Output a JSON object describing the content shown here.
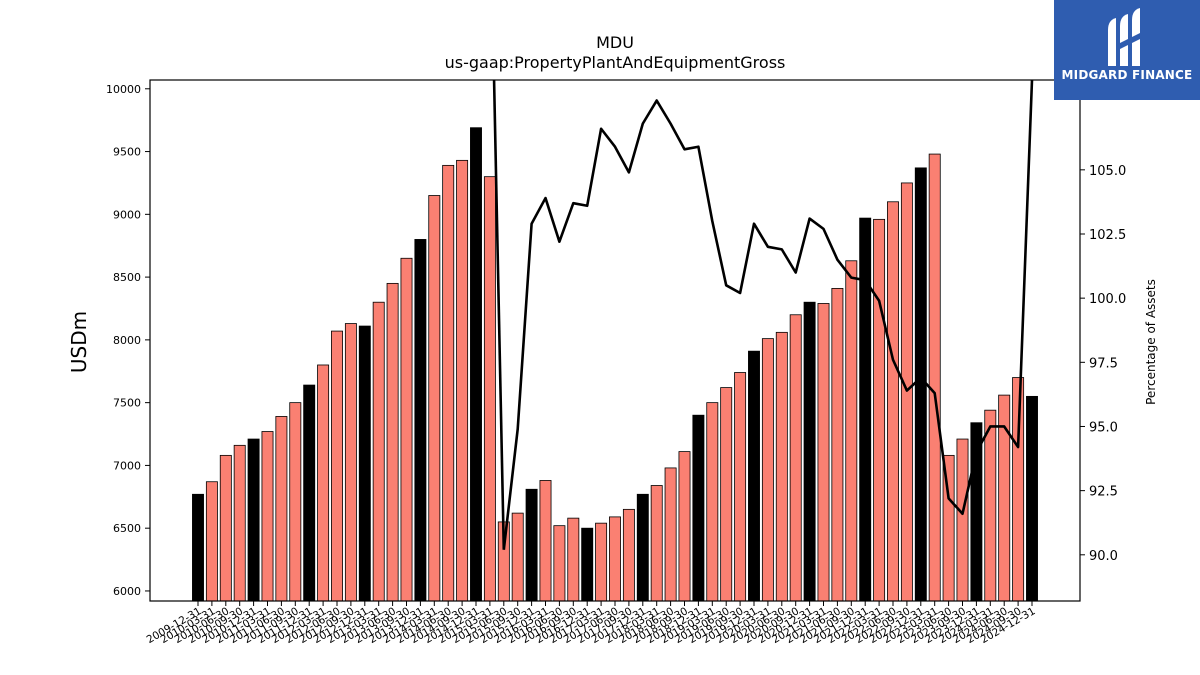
{
  "chart_data": {
    "type": "bar",
    "title": "MDU",
    "subtitle": "us-gaap:PropertyPlantAndEquipmentGross",
    "ylabel": "USDm",
    "y2label": "Percentage of Assets",
    "ylim": [
      5920,
      10070
    ],
    "y2lim": [
      88.2,
      108.5
    ],
    "yticks": [
      6000,
      6500,
      7000,
      7500,
      8000,
      8500,
      9000,
      9500,
      10000
    ],
    "y2ticks": [
      90.0,
      92.5,
      95.0,
      97.5,
      100.0,
      102.5,
      105.0
    ],
    "categories": [
      "2009-12-31",
      "2010-03-31",
      "2010-06-30",
      "2010-09-30",
      "2010-12-31",
      "2011-03-31",
      "2011-06-30",
      "2011-09-30",
      "2011-12-31",
      "2012-03-31",
      "2012-06-30",
      "2012-09-30",
      "2012-12-31",
      "2013-03-31",
      "2013-06-30",
      "2013-09-30",
      "2013-12-31",
      "2014-03-31",
      "2014-06-30",
      "2014-09-30",
      "2014-12-31",
      "2015-03-31",
      "2015-06-30",
      "2015-09-30",
      "2015-12-31",
      "2016-03-31",
      "2016-06-30",
      "2016-09-30",
      "2016-12-31",
      "2017-03-31",
      "2017-06-30",
      "2017-09-30",
      "2017-12-31",
      "2018-03-31",
      "2018-06-30",
      "2018-09-30",
      "2018-12-31",
      "2019-03-31",
      "2019-06-30",
      "2019-09-30",
      "2019-12-31",
      "2020-03-31",
      "2020-06-30",
      "2020-09-30",
      "2020-12-31",
      "2021-03-31",
      "2021-06-30",
      "2021-09-30",
      "2021-12-31",
      "2022-03-31",
      "2022-06-30",
      "2022-09-30",
      "2022-12-31",
      "2023-03-31",
      "2023-06-30",
      "2023-09-30",
      "2023-12-31",
      "2024-03-31",
      "2024-06-30",
      "2024-09-30",
      "2024-12-31"
    ],
    "series": [
      {
        "kind": "bar",
        "values": [
          6770,
          6870,
          7080,
          7160,
          7210,
          7270,
          7390,
          7500,
          7640,
          7800,
          8070,
          8130,
          8110,
          8300,
          8450,
          8650,
          8800,
          9150,
          9390,
          9430,
          9690,
          9300,
          6550,
          6620,
          6810,
          6880,
          6520,
          6580,
          6500,
          6540,
          6590,
          6650,
          6770,
          6840,
          6980,
          7110,
          7400,
          7500,
          7620,
          7740,
          7910,
          8010,
          8060,
          8200,
          8300,
          8290,
          8410,
          8630,
          8970,
          8960,
          9100,
          9250,
          9370,
          9480,
          7080,
          7210,
          7340,
          7440,
          7560,
          7700,
          7550
        ]
      },
      {
        "kind": "line",
        "axis": "right",
        "values": [
          null,
          null,
          null,
          null,
          null,
          null,
          null,
          null,
          null,
          null,
          null,
          null,
          null,
          null,
          null,
          null,
          null,
          null,
          null,
          null,
          null,
          null,
          90.2,
          94.9,
          102.9,
          103.9,
          102.2,
          103.7,
          103.6,
          106.6,
          105.9,
          104.9,
          106.8,
          107.7,
          106.8,
          105.8,
          105.9,
          103.0,
          100.5,
          100.2,
          102.9,
          102.0,
          101.9,
          101.0,
          103.1,
          102.7,
          101.5,
          100.8,
          100.7,
          99.9,
          97.6,
          96.4,
          96.9,
          96.3,
          92.2,
          91.6,
          94.0,
          95.0,
          95.0,
          94.2,
          108.5
        ]
      }
    ],
    "colors": {
      "bar_regular": "#fa8072",
      "bar_year_end": "#000000",
      "line": "#000000"
    },
    "grid": false
  },
  "logo": {
    "text": "MIDGARD FINANCE"
  }
}
